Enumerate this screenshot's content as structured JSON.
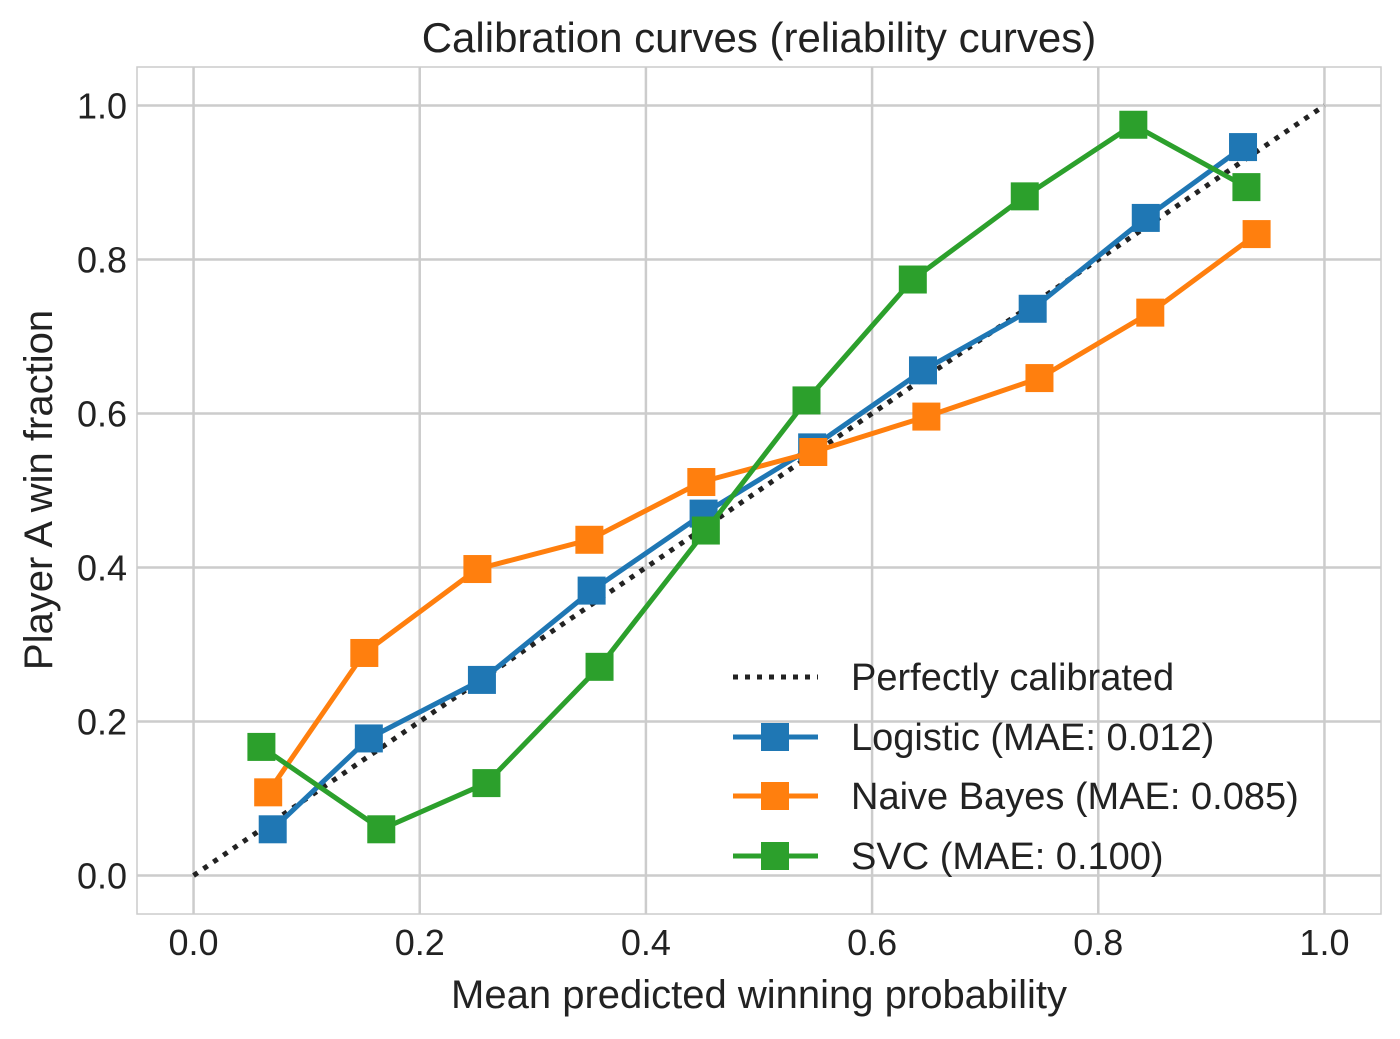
{
  "chart_data": {
    "type": "line",
    "title": "Calibration curves (reliability curves)",
    "xlabel": "Mean predicted winning probability",
    "ylabel": "Player A win fraction",
    "xlim": [
      -0.05,
      1.05
    ],
    "ylim": [
      -0.05,
      1.05
    ],
    "xticks": [
      0.0,
      0.2,
      0.4,
      0.6,
      0.8,
      1.0
    ],
    "yticks": [
      0.0,
      0.2,
      0.4,
      0.6,
      0.8,
      1.0
    ],
    "xtick_labels": [
      "0.0",
      "0.2",
      "0.4",
      "0.6",
      "0.8",
      "1.0"
    ],
    "ytick_labels": [
      "0.0",
      "0.2",
      "0.4",
      "0.6",
      "0.8",
      "1.0"
    ],
    "grid": true,
    "legend_position": "bottom-right",
    "reference": {
      "name": "Perfectly calibrated",
      "x": [
        0.0,
        1.0
      ],
      "y": [
        0.0,
        1.0
      ],
      "color": "#222222",
      "style": "dotted"
    },
    "series": [
      {
        "name": "Logistic (MAE: 0.012)",
        "color": "#1f77b4",
        "marker": "square",
        "x": [
          0.07,
          0.155,
          0.255,
          0.352,
          0.451,
          0.547,
          0.645,
          0.742,
          0.842,
          0.928
        ],
        "y": [
          0.06,
          0.178,
          0.254,
          0.37,
          0.47,
          0.556,
          0.656,
          0.736,
          0.854,
          0.946
        ]
      },
      {
        "name": "Naive Bayes (MAE: 0.085)",
        "color": "#ff7f0e",
        "marker": "square",
        "x": [
          0.066,
          0.151,
          0.251,
          0.35,
          0.449,
          0.548,
          0.648,
          0.748,
          0.846,
          0.94
        ],
        "y": [
          0.108,
          0.289,
          0.398,
          0.436,
          0.511,
          0.55,
          0.596,
          0.646,
          0.731,
          0.833
        ]
      },
      {
        "name": "SVC (MAE: 0.100)",
        "color": "#2ca02c",
        "marker": "square",
        "x": [
          0.06,
          0.166,
          0.259,
          0.359,
          0.453,
          0.542,
          0.636,
          0.735,
          0.831,
          0.931
        ],
        "y": [
          0.167,
          0.06,
          0.12,
          0.271,
          0.448,
          0.617,
          0.774,
          0.882,
          0.975,
          0.894
        ]
      }
    ]
  }
}
